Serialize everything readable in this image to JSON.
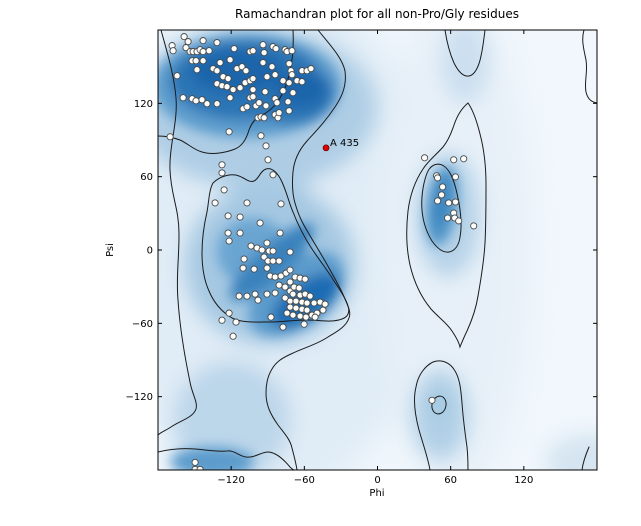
{
  "figure": {
    "background": "#ffffff",
    "title": "Ramachandran plot for all non-Pro/Gly residues"
  },
  "chart_data": {
    "type": "scatter",
    "title": "Ramachandran plot for all non-Pro/Gly residues",
    "xlabel": "Phi",
    "ylabel": "Psi",
    "xlim": [
      -180,
      180
    ],
    "ylim": [
      -180,
      180
    ],
    "grid": false,
    "legend": "none",
    "background_style": "blue kernel-density favored/allowed shading with black contour outlines",
    "colors": {
      "density_core": "#1a65ab",
      "density_strong": "#2a74b5",
      "density_mid": "#5b9bcc",
      "density_light": "#aecde5",
      "density_faint": "#e0ecf6",
      "plot_background": "#f1f7fc",
      "contour_line": "#1b1b1b",
      "point_fill": "#fdfdfb",
      "point_stroke": "#4a4a4a",
      "outlier_color": "#e00000",
      "axis_color": "#000000"
    },
    "x_ticks": [
      -120,
      -60,
      0,
      60,
      120
    ],
    "y_ticks": [
      120,
      60,
      0,
      -60,
      -120
    ],
    "x_tick_labels": [
      "−120",
      "−60",
      "0",
      "60",
      "120"
    ],
    "y_tick_labels": [
      "120",
      "60",
      "0",
      "−60",
      "−120"
    ],
    "series": [
      {
        "name": "non-Pro/Gly residues",
        "marker": "circle",
        "points": [
          [
            -158.6,
            174.6
          ],
          [
            -155.3,
            170.5
          ],
          [
            -143,
            171.3
          ],
          [
            -131.6,
            169.7
          ],
          [
            -168.4,
            167.2
          ],
          [
            -167.6,
            163.1
          ],
          [
            -157,
            165.6
          ],
          [
            -153.7,
            162.3
          ],
          [
            -151.2,
            162.3
          ],
          [
            -148,
            162.3
          ],
          [
            -145.5,
            163.9
          ],
          [
            -143,
            162.3
          ],
          [
            -138.1,
            163.1
          ],
          [
            -117.6,
            164.8
          ],
          [
            -104.5,
            162.3
          ],
          [
            -152,
            154.9
          ],
          [
            -148.8,
            154.9
          ],
          [
            -143,
            154.9
          ],
          [
            -129.1,
            153.3
          ],
          [
            -120.9,
            155.7
          ],
          [
            -148,
            147.5
          ],
          [
            -134.8,
            148.4
          ],
          [
            -131.6,
            146.7
          ],
          [
            -115.2,
            148.4
          ],
          [
            -111.1,
            150
          ],
          [
            -107.8,
            146.7
          ],
          [
            -164.3,
            142.6
          ],
          [
            -126.6,
            141.8
          ],
          [
            -122.5,
            140.2
          ],
          [
            -131.6,
            136.1
          ],
          [
            -127.5,
            134.4
          ],
          [
            -123.4,
            133.6
          ],
          [
            -118.4,
            131.2
          ],
          [
            -112.7,
            132.8
          ],
          [
            -108.6,
            136.9
          ],
          [
            -104.5,
            138.5
          ],
          [
            -102.1,
            163.1
          ],
          [
            -93.9,
            168
          ],
          [
            -93,
            161.5
          ],
          [
            -85.7,
            166.4
          ],
          [
            -83.2,
            164.8
          ],
          [
            -75.8,
            163.9
          ],
          [
            -74.2,
            162.3
          ],
          [
            -70.1,
            163.1
          ],
          [
            -93.9,
            153.3
          ],
          [
            -86.5,
            150
          ],
          [
            -102.1,
            140.2
          ],
          [
            -90.6,
            141.8
          ],
          [
            -84,
            143.4
          ],
          [
            -72.5,
            152.5
          ],
          [
            -70.9,
            146.7
          ],
          [
            -70.1,
            143.4
          ],
          [
            -61.9,
            146.7
          ],
          [
            -57.8,
            146.7
          ],
          [
            -54.5,
            148.4
          ],
          [
            -77.5,
            138.5
          ],
          [
            -72.5,
            136.9
          ],
          [
            -66,
            138.5
          ],
          [
            -61.9,
            137.7
          ],
          [
            -102.1,
            131.2
          ],
          [
            -92.2,
            129.5
          ],
          [
            -77.5,
            130.3
          ],
          [
            -69.3,
            128.7
          ],
          [
            -159.4,
            124.6
          ],
          [
            -152,
            123.8
          ],
          [
            -148.8,
            122.1
          ],
          [
            -143.9,
            123
          ],
          [
            -139.8,
            119.7
          ],
          [
            -131.6,
            119.7
          ],
          [
            -120.9,
            124.6
          ],
          [
            -110.2,
            115.6
          ],
          [
            -107,
            117.2
          ],
          [
            -104.5,
            124.6
          ],
          [
            -102.1,
            125.4
          ],
          [
            -99.6,
            118
          ],
          [
            -98,
            108.2
          ],
          [
            -95.5,
            109
          ],
          [
            -93,
            108.2
          ],
          [
            -97.1,
            120.5
          ],
          [
            -91.4,
            118
          ],
          [
            -84,
            123.8
          ],
          [
            -82.4,
            120.5
          ],
          [
            -84,
            110.7
          ],
          [
            -81.6,
            108.2
          ],
          [
            -80.7,
            112.3
          ],
          [
            -73.4,
            121.3
          ],
          [
            -72.5,
            113.9
          ],
          [
            -170.1,
            92.6
          ],
          [
            -121.7,
            96.7
          ],
          [
            -95.5,
            93.4
          ],
          [
            -91.4,
            85.2
          ],
          [
            -89.8,
            73.8
          ],
          [
            -127.5,
            69.7
          ],
          [
            -127.5,
            63.1
          ],
          [
            -85.7,
            61.5
          ],
          [
            -125.8,
            49.2
          ],
          [
            -133.2,
            38.5
          ],
          [
            -107,
            38.5
          ],
          [
            -79.1,
            37.7
          ],
          [
            -122.5,
            27.9
          ],
          [
            -112.7,
            27
          ],
          [
            -96.3,
            22.1
          ],
          [
            -122.5,
            13.9
          ],
          [
            -112.7,
            13.9
          ],
          [
            -79.9,
            13.9
          ],
          [
            -121.7,
            7.4
          ],
          [
            -109.4,
            -7.4
          ],
          [
            -103.7,
            3.3
          ],
          [
            -98.8,
            1.6
          ],
          [
            -94.7,
            0
          ],
          [
            -90.6,
            5.7
          ],
          [
            -88.9,
            -0.8
          ],
          [
            -93,
            -5.7
          ],
          [
            -89.8,
            -9
          ],
          [
            -85.7,
            -0.8
          ],
          [
            -110.2,
            -14.8
          ],
          [
            -101.2,
            -15.6
          ],
          [
            -90.6,
            -14.8
          ],
          [
            -85.7,
            -9
          ],
          [
            -80.7,
            -9
          ],
          [
            -71.7,
            -1.6
          ],
          [
            -88.1,
            -21.3
          ],
          [
            -84,
            -22.1
          ],
          [
            -79.1,
            -21.3
          ],
          [
            -75,
            -18.9
          ],
          [
            -71.7,
            -16.4
          ],
          [
            -67.6,
            -22.1
          ],
          [
            -63.5,
            -23
          ],
          [
            -59.4,
            -23.8
          ],
          [
            -71.7,
            -26.2
          ],
          [
            -80.7,
            -28.7
          ],
          [
            -75.8,
            -30.3
          ],
          [
            -84,
            -35.2
          ],
          [
            -90.6,
            -36.1
          ],
          [
            -100.4,
            -36.1
          ],
          [
            -107,
            -37.7
          ],
          [
            -113.5,
            -37.7
          ],
          [
            -98,
            -41
          ],
          [
            -71.7,
            -33.6
          ],
          [
            -68.4,
            -30.3
          ],
          [
            -64.3,
            -31.1
          ],
          [
            -69.3,
            -36.1
          ],
          [
            -63.5,
            -36.9
          ],
          [
            -59.4,
            -36.1
          ],
          [
            -55.3,
            -37.7
          ],
          [
            -75.8,
            -39.3
          ],
          [
            -71.7,
            -41.8
          ],
          [
            -66.8,
            -41.8
          ],
          [
            -61.9,
            -42.6
          ],
          [
            -57.8,
            -43.4
          ],
          [
            -52,
            -43.4
          ],
          [
            -47.1,
            -42.6
          ],
          [
            -43,
            -44.3
          ],
          [
            -71.7,
            -46.7
          ],
          [
            -66.8,
            -47.5
          ],
          [
            -61.9,
            -48.4
          ],
          [
            -57.8,
            -49.2
          ],
          [
            -74.2,
            -51.6
          ],
          [
            -69.3,
            -53.3
          ],
          [
            -63.5,
            -54.1
          ],
          [
            -58.6,
            -54.9
          ],
          [
            -53.7,
            -53.3
          ],
          [
            -49.6,
            -51.6
          ],
          [
            -44.7,
            -49.2
          ],
          [
            -121.7,
            -51.6
          ],
          [
            -116,
            -59
          ],
          [
            -87.3,
            -54.9
          ],
          [
            -77.5,
            -63.1
          ],
          [
            -60.2,
            -60.7
          ],
          [
            -51.2,
            -54.9
          ],
          [
            -127.5,
            -57.4
          ],
          [
            -118.4,
            -70.5
          ],
          [
            38.6,
            75.4
          ],
          [
            62.5,
            73.8
          ],
          [
            70.7,
            74.6
          ],
          [
            48.5,
            60.7
          ],
          [
            49.3,
            59
          ],
          [
            64,
            59.8
          ],
          [
            53.4,
            51.6
          ],
          [
            52.6,
            45.1
          ],
          [
            49.3,
            40.2
          ],
          [
            58.4,
            38.5
          ],
          [
            64,
            39.3
          ],
          [
            62.5,
            30.3
          ],
          [
            57.5,
            26.2
          ],
          [
            63.3,
            26.2
          ],
          [
            66.6,
            23.8
          ],
          [
            78.9,
            19.7
          ],
          [
            44.7,
            -123
          ],
          [
            -149.6,
            -173.8
          ],
          [
            -149.6,
            -179.5
          ],
          [
            -145.5,
            -179.5
          ]
        ]
      }
    ],
    "outliers": [
      {
        "label": "A 435",
        "phi": -42.2,
        "psi": 83.6
      }
    ]
  }
}
